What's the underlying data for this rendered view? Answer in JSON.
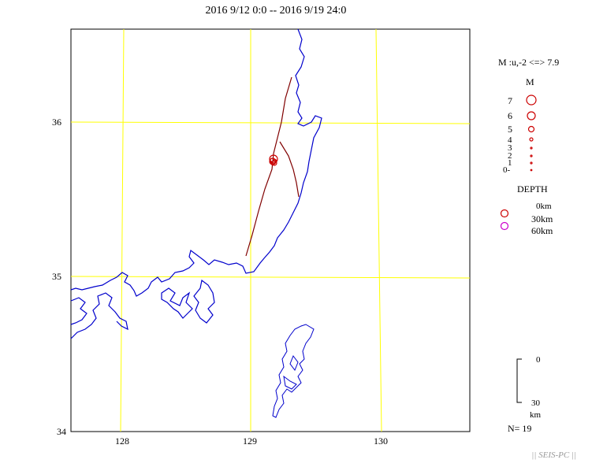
{
  "title": "2016 9/12 0:0 -- 2016 9/19 24:0",
  "map": {
    "x_ticks": [
      "128",
      "129",
      "130"
    ],
    "y_ticks": [
      "36",
      "35",
      "34"
    ],
    "grid_color": "#ffff00",
    "coast_color": "#0000cc",
    "fault_color": "#800000",
    "quake_color": "#cc0000"
  },
  "legend": {
    "range_text": "M :u,-2 <=> 7.9",
    "mag_heading": "M",
    "mag_labels": [
      "7",
      "6",
      "5",
      "4",
      "3",
      "2",
      "1",
      "0-"
    ],
    "depth_heading": "DEPTH",
    "depth_labels": [
      "0km",
      "30km",
      "60km"
    ],
    "scale_top": "0",
    "scale_bottom": "30",
    "scale_unit": "km",
    "count": "N= 19"
  },
  "footer": "|| SEIS-PC ||"
}
